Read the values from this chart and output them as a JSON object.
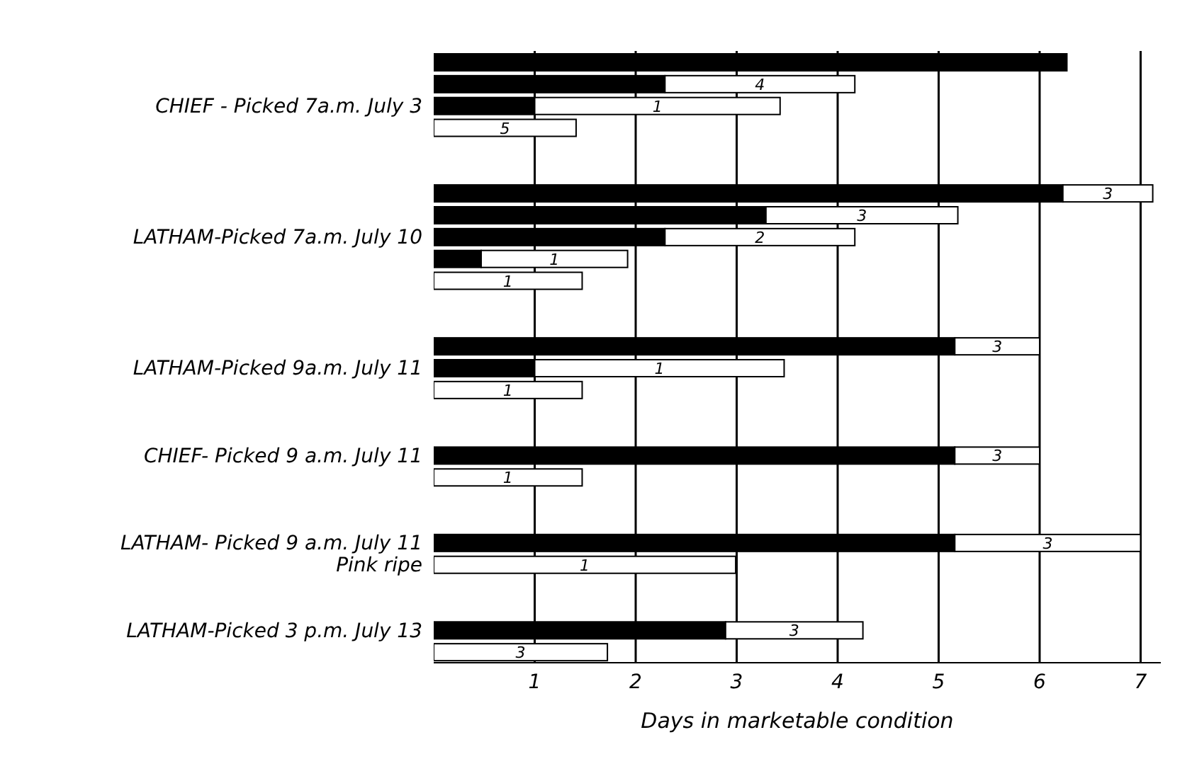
{
  "chart_data": {
    "type": "bar",
    "orientation": "horizontal",
    "stacked": true,
    "xlabel": "Days in marketable condition",
    "categories": [
      null,
      null,
      "CHIEF - Picked 7a.m. July 3",
      null,
      null,
      null,
      null,
      null,
      "LATHAM-Picked 7a.m. July 10",
      null,
      null,
      null,
      null,
      null,
      "LATHAM-Picked 9a.m. July 11",
      null,
      null,
      null,
      "CHIEF- Picked 9 a.m. July 11",
      null,
      null,
      null,
      "LATHAM- Picked 9 a.m. July 11",
      "Pink ripe",
      null,
      null,
      "LATHAM-Picked 3 p.m. July 13",
      null
    ],
    "series": [
      {
        "color": "#000000",
        "values": [
          6.27,
          2.29,
          1.0,
          null,
          null,
          null,
          6.23,
          3.29,
          2.29,
          0.47,
          null,
          null,
          null,
          5.16,
          1.0,
          null,
          null,
          null,
          5.16,
          null,
          null,
          null,
          5.16,
          null,
          null,
          null,
          2.89,
          null
        ]
      },
      {
        "color": "#ffffff",
        "values": [
          null,
          1.88,
          2.43,
          1.41,
          null,
          null,
          0.89,
          1.9,
          1.88,
          1.45,
          1.47,
          null,
          null,
          0.84,
          2.47,
          1.47,
          null,
          null,
          0.84,
          1.47,
          null,
          null,
          1.84,
          2.99,
          null,
          null,
          1.36,
          1.72
        ]
      }
    ],
    "annotations": [
      "4",
      "1",
      "5",
      "3",
      "3",
      "2",
      "1",
      "1",
      "3",
      "1",
      "1",
      "3",
      "1",
      "3",
      "1",
      "3",
      "3"
    ],
    "xlim": [
      0,
      7.2
    ],
    "xticks": [
      1,
      2,
      3,
      4,
      5,
      6,
      7
    ],
    "grid": "x",
    "legend": false
  }
}
